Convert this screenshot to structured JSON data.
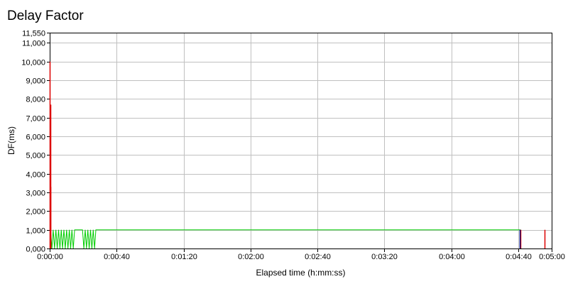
{
  "chart_data": {
    "type": "line",
    "title": "Delay Factor",
    "xlabel": "Elapsed time (h:mm:ss)",
    "ylabel": "DF(ms)",
    "xlim": [
      0,
      300
    ],
    "ylim": [
      0,
      11550
    ],
    "x_ticks": [
      {
        "value": 0,
        "label": "0:00:00"
      },
      {
        "value": 40,
        "label": "0:00:40"
      },
      {
        "value": 80,
        "label": "0:01:20"
      },
      {
        "value": 120,
        "label": "0:02:00"
      },
      {
        "value": 160,
        "label": "0:02:40"
      },
      {
        "value": 200,
        "label": "0:03:20"
      },
      {
        "value": 240,
        "label": "0:04:00"
      },
      {
        "value": 280,
        "label": "0:04:40"
      },
      {
        "value": 300,
        "label": "0:05:00"
      }
    ],
    "y_ticks": [
      {
        "value": 0,
        "label": "0,000"
      },
      {
        "value": 1000,
        "label": "1,000"
      },
      {
        "value": 2000,
        "label": "2,000"
      },
      {
        "value": 3000,
        "label": "3,000"
      },
      {
        "value": 4000,
        "label": "4,000"
      },
      {
        "value": 5000,
        "label": "5,000"
      },
      {
        "value": 6000,
        "label": "6,000"
      },
      {
        "value": 7000,
        "label": "7,000"
      },
      {
        "value": 8000,
        "label": "8,000"
      },
      {
        "value": 9000,
        "label": "9,000"
      },
      {
        "value": 10000,
        "label": "10,000"
      },
      {
        "value": 11000,
        "label": "11,000"
      },
      {
        "value": 11550,
        "label": "11,550"
      }
    ],
    "grid": true,
    "series": [
      {
        "color": "#00cc00",
        "x": [
          0,
          0.5,
          1.3,
          2.1,
          2.9,
          3.7,
          4.5,
          5.3,
          6.1,
          6.9,
          7.7,
          8.5,
          9.3,
          10.1,
          10.9,
          11.7,
          12.5,
          13.3,
          14.1,
          14.9,
          15.4,
          19.0,
          19.6,
          20.4,
          21.2,
          22.0,
          22.8,
          23.6,
          24.4,
          25.2,
          26.0,
          26.8,
          27.6,
          28.3,
          281.5
        ],
        "y": [
          1000,
          1000,
          0,
          1000,
          0,
          1000,
          0,
          1000,
          0,
          1000,
          0,
          1000,
          0,
          1000,
          0,
          1000,
          0,
          1000,
          0,
          1000,
          1000,
          1000,
          1000,
          0,
          1000,
          0,
          1000,
          0,
          1000,
          0,
          1000,
          0,
          1000,
          1000,
          1000
        ]
      },
      {
        "color": "#dd0000",
        "spikes": [
          {
            "x": 0.1,
            "y": 10000
          },
          {
            "x": 0.3,
            "y": 7700
          },
          {
            "x": 0.5,
            "y": 3300
          },
          {
            "x": 281.2,
            "y": 1000
          },
          {
            "x": 295.8,
            "y": 1000
          }
        ]
      },
      {
        "color": "#000080",
        "spikes": [
          {
            "x": 280.9,
            "y": 1000
          }
        ]
      }
    ]
  }
}
